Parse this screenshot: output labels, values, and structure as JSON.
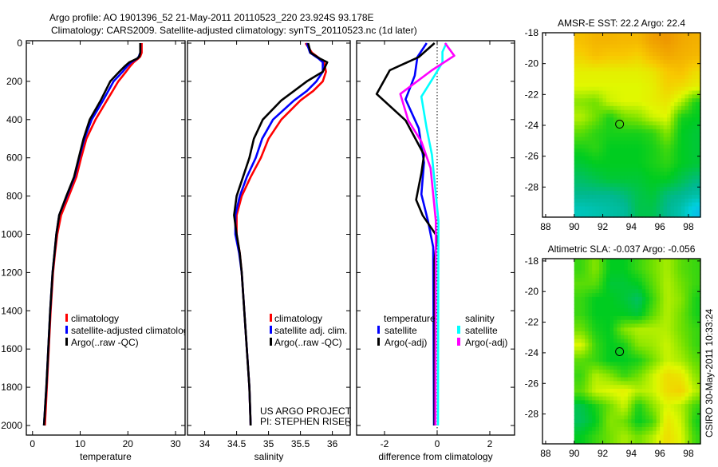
{
  "title": {
    "line1": "Argo profile: AO 1901396_52 21-May-2011 20110523_220 23.924S 93.178E",
    "line2": "Climatology: CARS2009. Satellite-adjusted climatology: synTS_20110523.nc (1d later)"
  },
  "credits": {
    "project": "US ARGO PROJECT",
    "pi": "PI: STEPHEN RISER",
    "stamp": "CSIRO 30-May-2011 10:33:24"
  },
  "colors": {
    "climatology": "#ff0000",
    "satellite": "#0000ff",
    "argo": "#000000",
    "salinity_satellite": "#00ffff",
    "salinity_argo": "#ff00ff"
  },
  "chart_data": [
    {
      "type": "line",
      "id": "temperature",
      "xlabel": "temperature",
      "ylabel": "",
      "xlim": [
        -1.3,
        32
      ],
      "ylim": [
        2050,
        -12
      ],
      "xticks": [
        0,
        10,
        20,
        30
      ],
      "yticks": [
        0,
        200,
        400,
        600,
        800,
        1000,
        1200,
        1400,
        1600,
        1800,
        2000
      ],
      "depth": [
        0,
        20,
        50,
        70,
        80,
        100,
        120,
        150,
        200,
        250,
        300,
        400,
        500,
        600,
        700,
        800,
        900,
        1000,
        1100,
        1200,
        1400,
        1600,
        1800,
        2000
      ],
      "series": [
        {
          "name": "climatology",
          "color": "#ff0000",
          "values": [
            22.9,
            22.9,
            22.9,
            22.6,
            22.2,
            21.2,
            20.5,
            19.6,
            18.0,
            16.8,
            15.6,
            13.2,
            11.3,
            10.2,
            9.2,
            7.6,
            6.0,
            5.2,
            4.7,
            4.3,
            3.8,
            3.4,
            3.0,
            2.6
          ]
        },
        {
          "name": "satellite-adjusted climatology",
          "color": "#0000ff",
          "values": [
            22.6,
            22.6,
            22.6,
            22.3,
            22.0,
            20.7,
            19.9,
            18.9,
            17.0,
            15.9,
            14.8,
            12.4,
            10.9,
            9.8,
            8.8,
            7.2,
            5.6,
            5.0,
            4.6,
            4.2,
            3.7,
            3.3,
            2.9,
            2.4
          ]
        },
        {
          "name": "Argo(..raw -QC)",
          "color": "#000000",
          "values": [
            22.6,
            22.6,
            22.6,
            22.4,
            22.0,
            20.3,
            19.4,
            18.2,
            16.3,
            15.3,
            14.3,
            12.0,
            10.7,
            9.7,
            8.7,
            7.1,
            5.6,
            5.0,
            4.6,
            4.2,
            3.7,
            3.3,
            2.9,
            2.4
          ]
        }
      ]
    },
    {
      "type": "line",
      "id": "salinity",
      "xlabel": "salinity",
      "xlim": [
        33.73,
        36.28
      ],
      "ylim": [
        2050,
        -12
      ],
      "xticks": [
        34,
        34.5,
        35,
        35.5,
        36
      ],
      "depth": [
        0,
        50,
        80,
        100,
        150,
        200,
        250,
        300,
        400,
        500,
        600,
        700,
        800,
        900,
        1000,
        1100,
        1200,
        1400,
        1600,
        1800,
        2000
      ],
      "series": [
        {
          "name": "climatology",
          "color": "#ff0000",
          "values": [
            35.58,
            35.68,
            35.8,
            35.87,
            35.9,
            35.85,
            35.7,
            35.5,
            35.2,
            35.0,
            34.88,
            34.72,
            34.58,
            34.5,
            34.5,
            34.55,
            34.58,
            34.62,
            34.66,
            34.7,
            34.72
          ]
        },
        {
          "name": "satellite adj. clim.",
          "color": "#0000ff",
          "values": [
            35.6,
            35.65,
            35.78,
            35.85,
            35.85,
            35.75,
            35.6,
            35.4,
            35.07,
            34.9,
            34.8,
            34.66,
            34.55,
            34.48,
            34.48,
            34.54,
            34.58,
            34.62,
            34.66,
            34.7,
            34.72
          ]
        },
        {
          "name": "Argo(..raw -QC)",
          "color": "#000000",
          "values": [
            35.62,
            35.66,
            35.8,
            35.92,
            35.85,
            35.6,
            35.4,
            35.2,
            34.91,
            34.77,
            34.7,
            34.6,
            34.5,
            34.46,
            34.5,
            34.55,
            34.58,
            34.62,
            34.66,
            34.7,
            34.72
          ]
        }
      ]
    },
    {
      "type": "line",
      "id": "difference",
      "xlabel": "difference from climatology",
      "xlim": [
        -3.06,
        2.94
      ],
      "ylim": [
        2050,
        -12
      ],
      "xticks": [
        -2,
        0,
        2
      ],
      "zero_line": 0,
      "legend_headers": {
        "temperature": "temperature",
        "salinity": "salinity"
      },
      "series": [
        {
          "group": "temperature",
          "name": "satellite",
          "color": "#0000ff",
          "depth": [
            0,
            73,
            170,
            294,
            446,
            625,
            791,
            929,
            1067,
            2000
          ],
          "values": [
            -0.4,
            -0.75,
            -0.85,
            -1.2,
            -0.7,
            -0.5,
            -0.6,
            -0.35,
            -0.15,
            -0.12
          ]
        },
        {
          "group": "temperature",
          "name": "Argo(-adj)",
          "color": "#000000",
          "depth": [
            0,
            73,
            142,
            266,
            404,
            584,
            680,
            819,
            901,
            1012,
            1136,
            2000
          ],
          "values": [
            -0.1,
            -0.7,
            -1.8,
            -2.3,
            -1.2,
            -0.5,
            -0.6,
            -0.8,
            -0.55,
            0.0,
            -0.1,
            -0.1
          ]
        },
        {
          "group": "salinity",
          "name": "satellite",
          "color": "#00ffff",
          "depth": [
            0,
            46,
            101,
            170,
            280,
            446,
            584,
            791,
            929,
            2000
          ],
          "values": [
            0.35,
            0.2,
            0.2,
            -0.1,
            -0.6,
            -0.4,
            -0.2,
            -0.05,
            0.05,
            0.03
          ]
        },
        {
          "group": "salinity",
          "name": "Argo(-adj)",
          "color": "#ff00ff",
          "depth": [
            0,
            66,
            142,
            266,
            404,
            515,
            653,
            791,
            929,
            2000
          ],
          "values": [
            0.3,
            0.65,
            -0.2,
            -1.4,
            -1.1,
            -0.6,
            -0.25,
            -0.15,
            -0.05,
            -0.07
          ]
        }
      ]
    },
    {
      "type": "heatmap",
      "id": "sst-map",
      "title": "AMSR-E SST: 22.2 Argo: 22.4",
      "xlim": [
        87.78,
        98.84
      ],
      "ylim": [
        -29.95,
        -18
      ],
      "xticks": [
        88,
        90,
        92,
        94,
        96,
        98
      ],
      "yticks": [
        -18,
        -20,
        -22,
        -24,
        -26,
        -28
      ],
      "lon0": 90.5,
      "lat0": -18.5,
      "step": 1,
      "data_west_edge": 90,
      "argo_position": [
        93.178,
        -23.924
      ],
      "values_normalized": [
        [
          0.82,
          0.85,
          0.85,
          0.84,
          0.84,
          0.9,
          0.92,
          0.88,
          0.86
        ],
        [
          0.78,
          0.82,
          0.8,
          0.8,
          0.78,
          0.84,
          0.88,
          0.86,
          0.84
        ],
        [
          0.72,
          0.72,
          0.72,
          0.72,
          0.72,
          0.74,
          0.8,
          0.82,
          0.76
        ],
        [
          0.7,
          0.7,
          0.7,
          0.7,
          0.7,
          0.72,
          0.78,
          0.76,
          0.72
        ],
        [
          0.62,
          0.6,
          0.68,
          0.7,
          0.7,
          0.72,
          0.74,
          0.66,
          0.52
        ],
        [
          0.66,
          0.6,
          0.52,
          0.6,
          0.62,
          0.68,
          0.7,
          0.52,
          0.5
        ],
        [
          0.58,
          0.54,
          0.52,
          0.52,
          0.52,
          0.54,
          0.62,
          0.5,
          0.48
        ],
        [
          0.52,
          0.54,
          0.5,
          0.5,
          0.5,
          0.52,
          0.56,
          0.5,
          0.48
        ],
        [
          0.48,
          0.5,
          0.5,
          0.5,
          0.5,
          0.52,
          0.54,
          0.5,
          0.48
        ],
        [
          0.44,
          0.46,
          0.48,
          0.48,
          0.48,
          0.5,
          0.5,
          0.46,
          0.42
        ],
        [
          0.4,
          0.4,
          0.4,
          0.42,
          0.46,
          0.48,
          0.42,
          0.4,
          0.36
        ],
        [
          0.32,
          0.34,
          0.36,
          0.38,
          0.46,
          0.46,
          0.4,
          0.34,
          0.2
        ]
      ]
    },
    {
      "type": "heatmap",
      "id": "sla-map",
      "title": "Altimetric SLA: -0.037 Argo: -0.056",
      "xlim": [
        87.78,
        98.84
      ],
      "ylim": [
        -29.95,
        -17.85
      ],
      "xticks": [
        88,
        90,
        92,
        94,
        96,
        98
      ],
      "yticks": [
        -18,
        -20,
        -22,
        -24,
        -26,
        -28
      ],
      "lon0": 90.5,
      "lat0": -18.5,
      "step": 1,
      "data_west_edge": 90,
      "argo_position": [
        93.178,
        -23.924
      ],
      "values_normalized": [
        [
          0.55,
          0.62,
          0.5,
          0.5,
          0.55,
          0.6,
          0.65,
          0.58,
          0.55
        ],
        [
          0.58,
          0.58,
          0.48,
          0.48,
          0.5,
          0.58,
          0.66,
          0.6,
          0.55
        ],
        [
          0.55,
          0.5,
          0.5,
          0.48,
          0.44,
          0.55,
          0.66,
          0.62,
          0.52
        ],
        [
          0.55,
          0.5,
          0.5,
          0.5,
          0.48,
          0.58,
          0.66,
          0.6,
          0.52
        ],
        [
          0.6,
          0.52,
          0.5,
          0.62,
          0.66,
          0.66,
          0.66,
          0.6,
          0.55
        ],
        [
          0.7,
          0.55,
          0.5,
          0.52,
          0.62,
          0.64,
          0.68,
          0.62,
          0.55
        ],
        [
          0.58,
          0.55,
          0.5,
          0.5,
          0.52,
          0.6,
          0.68,
          0.65,
          0.58
        ],
        [
          0.55,
          0.66,
          0.62,
          0.55,
          0.6,
          0.68,
          0.76,
          0.74,
          0.62
        ],
        [
          0.58,
          0.68,
          0.7,
          0.72,
          0.66,
          0.68,
          0.76,
          0.78,
          0.66
        ],
        [
          0.46,
          0.52,
          0.6,
          0.68,
          0.52,
          0.62,
          0.7,
          0.66,
          0.55
        ],
        [
          0.45,
          0.5,
          0.62,
          0.6,
          0.5,
          0.56,
          0.74,
          0.68,
          0.52
        ],
        [
          0.5,
          0.55,
          0.6,
          0.65,
          0.6,
          0.66,
          0.76,
          0.7,
          0.55
        ]
      ]
    }
  ]
}
